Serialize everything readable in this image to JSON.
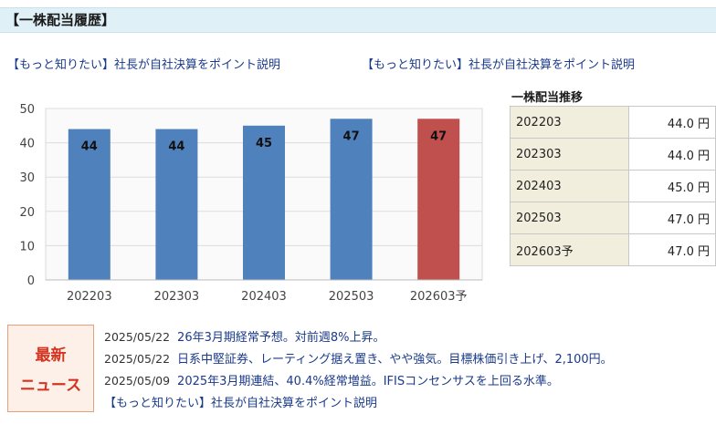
{
  "section": {
    "title": "【一株配当履歴】"
  },
  "top_links": [
    "【もっと知りたい】社長が自社決算をポイント説明",
    "【もっと知りたい】社長が自社決算をポイント説明"
  ],
  "table": {
    "title": "一株配当推移",
    "rows": [
      {
        "period": "202203",
        "amount": "44.0 円"
      },
      {
        "period": "202303",
        "amount": "44.0 円"
      },
      {
        "period": "202403",
        "amount": "45.0 円"
      },
      {
        "period": "202503",
        "amount": "47.0 円"
      },
      {
        "period": "202603予",
        "amount": "47.0 円"
      }
    ]
  },
  "chart_data": {
    "type": "bar",
    "categories": [
      "202203",
      "202303",
      "202403",
      "202503",
      "202603予"
    ],
    "values": [
      44,
      44,
      45,
      47,
      47
    ],
    "data_labels": [
      "44",
      "44",
      "45",
      "47",
      "47"
    ],
    "ylim": [
      0,
      50
    ],
    "yticks": [
      0,
      10,
      20,
      30,
      40,
      50
    ],
    "grid": true,
    "colors": [
      "#4f81bd",
      "#4f81bd",
      "#4f81bd",
      "#4f81bd",
      "#c0504d"
    ],
    "title": "",
    "xlabel": "",
    "ylabel": ""
  },
  "news": {
    "badge_line1": "最新",
    "badge_line2": "ニュース",
    "items": [
      {
        "date": "2025/05/22",
        "text": "26年3月期経常予想。対前週8%上昇。"
      },
      {
        "date": "2025/05/22",
        "text": "日系中堅証券、レーティング据え置き、やや強気。目標株価引き上げ、2,100円。"
      },
      {
        "date": "2025/05/09",
        "text": "2025年3月期連結、40.4%経常増益。IFISコンセンサスを上回る水準。"
      },
      {
        "date": "",
        "text": "【もっと知りたい】社長が自社決算をポイント説明"
      }
    ]
  }
}
